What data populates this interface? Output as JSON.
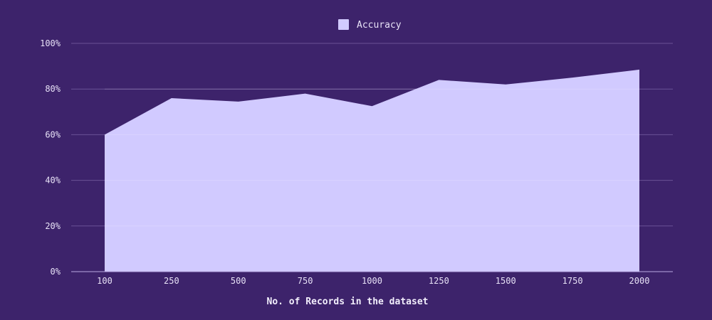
{
  "chart_data": {
    "type": "area",
    "categories": [
      "100",
      "250",
      "500",
      "750",
      "1000",
      "1250",
      "1500",
      "1750",
      "2000"
    ],
    "series": [
      {
        "name": "Accuracy",
        "values": [
          60,
          76,
          74.5,
          78,
          72.5,
          84,
          82,
          85,
          88.5
        ]
      }
    ],
    "xlabel": "No. of Records in the dataset",
    "ylabel": "",
    "ylim": [
      0,
      100
    ],
    "yticks": [
      "0%",
      "20%",
      "40%",
      "60%",
      "80%",
      "100%"
    ],
    "grid": true,
    "legend_position": "top-center",
    "colors": {
      "background": "#3d236b",
      "area": "#d1caff",
      "grid": "#6a5296",
      "text": "#e8e2f7"
    }
  }
}
